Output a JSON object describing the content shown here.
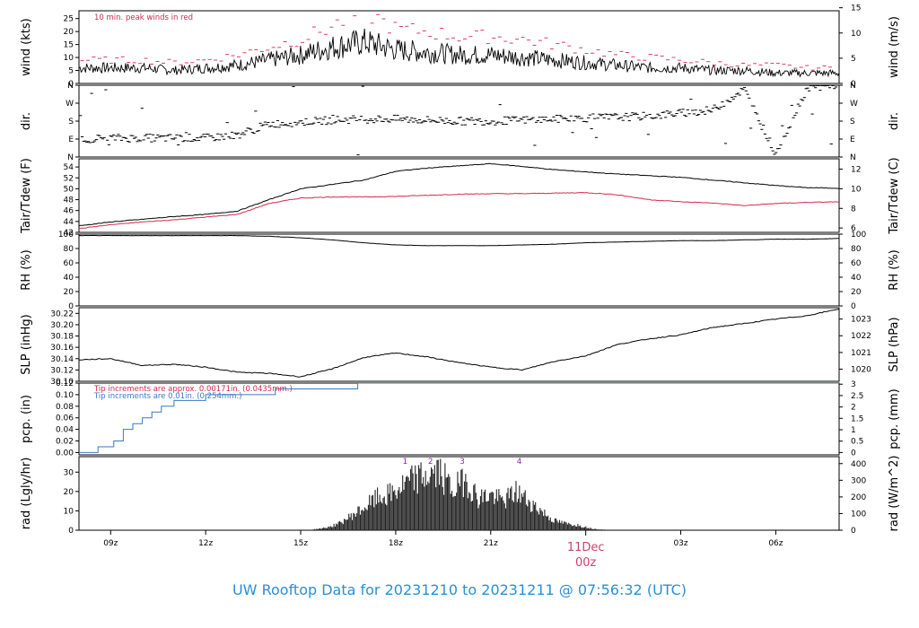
{
  "title": "UW Rooftop Data for 20231210  to  20231211 @ 07:56:32  (UTC)",
  "colors": {
    "primary": "#000000",
    "red": "#d6284f",
    "blue": "#3a78c8",
    "purple": "#8a1fb0",
    "title": "#2b8fd3"
  },
  "chart_data": {
    "type": "line",
    "x_axis": {
      "unit": "UTC hour",
      "range": [
        "20231210 08:00",
        "20231211 08:00"
      ],
      "ticks": [
        {
          "label": "09z",
          "hour": 9
        },
        {
          "label": "12z",
          "hour": 12
        },
        {
          "label": "15z",
          "hour": 15
        },
        {
          "label": "18z",
          "hour": 18
        },
        {
          "label": "21z",
          "hour": 21
        },
        {
          "label": "03z",
          "hour": 27
        },
        {
          "label": "06z",
          "hour": 30
        }
      ],
      "day_marker": {
        "hour": 24,
        "label1": "11Dec",
        "label2": "00z"
      }
    },
    "panels": [
      {
        "id": "wind",
        "ylabel": "wind (kts)",
        "ylabel_right": "wind (m/s)",
        "ylim": [
          0,
          28
        ],
        "yticks": [
          0,
          5,
          10,
          15,
          20,
          25
        ],
        "right_ticks": [
          {
            "label": "0",
            "v": 0
          },
          {
            "label": "5",
            "v": 9.72
          },
          {
            "label": "10",
            "v": 19.44
          },
          {
            "label": "15",
            "v": 29.16
          }
        ],
        "annotation": "10 min. peak winds in red",
        "series": [
          {
            "type": "wind",
            "hours": [
              8,
              9,
              10,
              11,
              12,
              13,
              14,
              15,
              16,
              17,
              18,
              19,
              20,
              21,
              22,
              23,
              24,
              25,
              26,
              27,
              28,
              29,
              30,
              31,
              32
            ],
            "values": [
              6,
              6,
              6,
              5,
              6,
              7,
              9,
              11,
              14,
              16,
              13,
              12,
              11,
              11,
              10,
              9,
              8,
              7,
              6,
              6,
              5,
              5,
              4,
              4,
              4
            ]
          },
          {
            "type": "gust",
            "hours": [
              8,
              9,
              10,
              11,
              12,
              13,
              14,
              15,
              16,
              17,
              18,
              19,
              20,
              21,
              22,
              23,
              24,
              25,
              26,
              27,
              28,
              29,
              30,
              31,
              32
            ],
            "values": [
              9,
              9,
              9,
              8,
              9,
              11,
              14,
              17,
              22,
              28,
              21,
              20,
              18,
              18,
              17,
              15,
              13,
              11,
              10,
              9,
              8,
              7,
              7,
              6,
              6
            ]
          }
        ]
      },
      {
        "id": "dir",
        "ylabel": "dir.",
        "ylabel_right": "dir.",
        "ylim": [
          0,
          360
        ],
        "yticks": [
          {
            "label": "N",
            "v": 0
          },
          {
            "label": "E",
            "v": 90
          },
          {
            "label": "S",
            "v": 180
          },
          {
            "label": "W",
            "v": 270
          },
          {
            "label": "N",
            "v": 360
          }
        ],
        "series": [
          {
            "type": "dir",
            "hours": [
              8,
              9,
              10,
              11,
              12,
              13,
              14,
              15,
              16,
              17,
              18,
              19,
              20,
              21,
              22,
              23,
              24,
              25,
              26,
              27,
              28,
              29,
              30,
              31,
              32
            ],
            "values": [
              90,
              95,
              95,
              95,
              95,
              110,
              165,
              175,
              185,
              190,
              190,
              185,
              180,
              180,
              185,
              190,
              195,
              200,
              205,
              220,
              235,
              340,
              15,
              350,
              360
            ]
          }
        ]
      },
      {
        "id": "temp",
        "ylabel": "Tair/Tdew (F)",
        "ylabel_right": "Tair/Tdew (C)",
        "ylim": [
          42,
          55.5
        ],
        "yticks": [
          42,
          44,
          46,
          48,
          50,
          52,
          54
        ],
        "right_ticks": [
          {
            "label": "6",
            "v": 42.8
          },
          {
            "label": "8",
            "v": 46.4
          },
          {
            "label": "10",
            "v": 50
          },
          {
            "label": "12",
            "v": 53.6
          }
        ],
        "series": [
          {
            "type": "tair",
            "hours": [
              8,
              9,
              10,
              11,
              12,
              13,
              14,
              15,
              16,
              17,
              18,
              19,
              20,
              21,
              22,
              23,
              24,
              25,
              26,
              27,
              28,
              29,
              30,
              31,
              32
            ],
            "values": [
              43.2,
              43.9,
              44.4,
              44.9,
              45.3,
              45.9,
              48.0,
              50.0,
              50.8,
              51.6,
              53.2,
              53.8,
              54.2,
              54.6,
              54.1,
              53.5,
              53.1,
              52.7,
              52.4,
              52.1,
              51.6,
              51.1,
              50.6,
              50.2,
              50.1
            ]
          },
          {
            "type": "tdew",
            "hours": [
              8,
              9,
              10,
              11,
              12,
              13,
              14,
              15,
              16,
              17,
              18,
              19,
              20,
              21,
              22,
              23,
              24,
              25,
              26,
              27,
              28,
              29,
              30,
              31,
              32
            ],
            "values": [
              42.7,
              43.4,
              43.9,
              44.3,
              44.8,
              45.3,
              47.3,
              48.3,
              48.5,
              48.5,
              48.6,
              48.8,
              49.0,
              49.1,
              49.1,
              49.2,
              49.3,
              48.9,
              48.0,
              47.6,
              47.4,
              46.9,
              47.3,
              47.5,
              47.6
            ]
          }
        ]
      },
      {
        "id": "rh",
        "ylabel": "RH (%)",
        "ylabel_right": "RH (%)",
        "ylim": [
          0,
          100
        ],
        "yticks": [
          0,
          20,
          40,
          60,
          80,
          100
        ],
        "right_ticks": [
          {
            "label": "0",
            "v": 0
          },
          {
            "label": "20",
            "v": 20
          },
          {
            "label": "40",
            "v": 40
          },
          {
            "label": "60",
            "v": 60
          },
          {
            "label": "80",
            "v": 80
          },
          {
            "label": "100",
            "v": 100
          }
        ],
        "series": [
          {
            "type": "rh",
            "hours": [
              8,
              9,
              10,
              11,
              12,
              13,
              14,
              15,
              16,
              17,
              18,
              19,
              20,
              21,
              22,
              23,
              24,
              25,
              26,
              27,
              28,
              29,
              30,
              31,
              32
            ],
            "values": [
              98,
              98,
              98,
              98,
              98,
              98,
              97,
              95,
              92,
              88,
              85,
              84,
              84,
              84,
              85,
              86,
              88,
              89,
              90,
              91,
              91,
              92,
              93,
              93,
              94
            ]
          }
        ]
      },
      {
        "id": "slp",
        "ylabel": "SLP (inHg)",
        "ylabel_right": "SLP (hPa)",
        "ylim": [
          30.1,
          30.23
        ],
        "yticks": [
          30.1,
          30.12,
          30.14,
          30.16,
          30.18,
          30.2,
          30.22
        ],
        "right_ticks": [
          {
            "label": "1020",
            "v": 30.1214
          },
          {
            "label": "1021",
            "v": 30.1509
          },
          {
            "label": "1022",
            "v": 30.1805
          },
          {
            "label": "1023",
            "v": 30.21
          }
        ],
        "series": [
          {
            "type": "slp",
            "hours": [
              8,
              9,
              10,
              11,
              12,
              13,
              14,
              15,
              16,
              17,
              18,
              19,
              20,
              21,
              22,
              23,
              24,
              25,
              26,
              27,
              28,
              29,
              30,
              31,
              32
            ],
            "values": [
              30.138,
              30.14,
              30.128,
              30.13,
              30.125,
              30.116,
              30.114,
              30.108,
              30.122,
              30.142,
              30.15,
              30.143,
              30.133,
              30.125,
              30.12,
              30.135,
              30.145,
              30.165,
              30.175,
              30.182,
              30.195,
              30.202,
              30.21,
              30.216,
              30.228
            ]
          }
        ]
      },
      {
        "id": "pcp",
        "ylabel": "pcp. (in)",
        "ylabel_right": "pcp. (mm)",
        "ylim": [
          -0.004,
          0.12
        ],
        "yticks": [
          0,
          0.02,
          0.04,
          0.06,
          0.08,
          0.1,
          0.12
        ],
        "right_ticks": [
          {
            "label": "0",
            "v": 0
          },
          {
            "label": "0.5",
            "v": 0.0197
          },
          {
            "label": "1",
            "v": 0.0394
          },
          {
            "label": "1.5",
            "v": 0.0591
          },
          {
            "label": "2",
            "v": 0.0787
          },
          {
            "label": "2.5",
            "v": 0.0984
          },
          {
            "label": "3",
            "v": 0.1181
          }
        ],
        "annotation_red": "Tip increments are approx. 0.00171in. (0.0435mm.)",
        "annotation_blue": "Tip increments are 0.01in. (0.254mm.)",
        "series": [
          {
            "type": "pcp",
            "hours": [
              8,
              8.6,
              9.1,
              9.4,
              9.7,
              10.0,
              10.3,
              10.6,
              11.0,
              11.5,
              12.0,
              13.0,
              14.2,
              15.5,
              16.8,
              32
            ],
            "values": [
              0,
              0.01,
              0.02,
              0.04,
              0.05,
              0.06,
              0.07,
              0.08,
              0.09,
              0.09,
              0.1,
              0.1,
              0.11,
              0.11,
              0.12,
              0.12
            ]
          }
        ]
      },
      {
        "id": "rad",
        "ylabel": "rad (Lgly/hr)",
        "ylabel_right": "rad (W/m^2)",
        "ylim": [
          0,
          38
        ],
        "yticks": [
          0,
          10,
          20,
          30
        ],
        "right_ticks": [
          {
            "label": "0",
            "v": 0
          },
          {
            "label": "100",
            "v": 8.6
          },
          {
            "label": "200",
            "v": 17.2
          },
          {
            "label": "300",
            "v": 25.8
          },
          {
            "label": "400",
            "v": 34.4
          }
        ],
        "markers": [
          {
            "label": "1",
            "hour": 18.3
          },
          {
            "label": "2",
            "hour": 19.1
          },
          {
            "label": "3",
            "hour": 20.1
          },
          {
            "label": "4",
            "hour": 21.9
          }
        ],
        "series": [
          {
            "type": "rad",
            "hours": [
              15.4,
              15.8,
              16.2,
              16.6,
              17.0,
              17.4,
              17.8,
              18.2,
              18.6,
              19.0,
              19.4,
              19.8,
              20.2,
              20.6,
              21.0,
              21.4,
              21.8,
              22.2,
              22.6,
              23.0,
              23.4,
              23.8,
              24.2,
              24.8
            ],
            "values": [
              0.5,
              1.5,
              4,
              9,
              14,
              20,
              22,
              27,
              32,
              34,
              36,
              25,
              32,
              20,
              22,
              18,
              24,
              18,
              12,
              6,
              4,
              3,
              1,
              0
            ]
          }
        ]
      }
    ]
  }
}
